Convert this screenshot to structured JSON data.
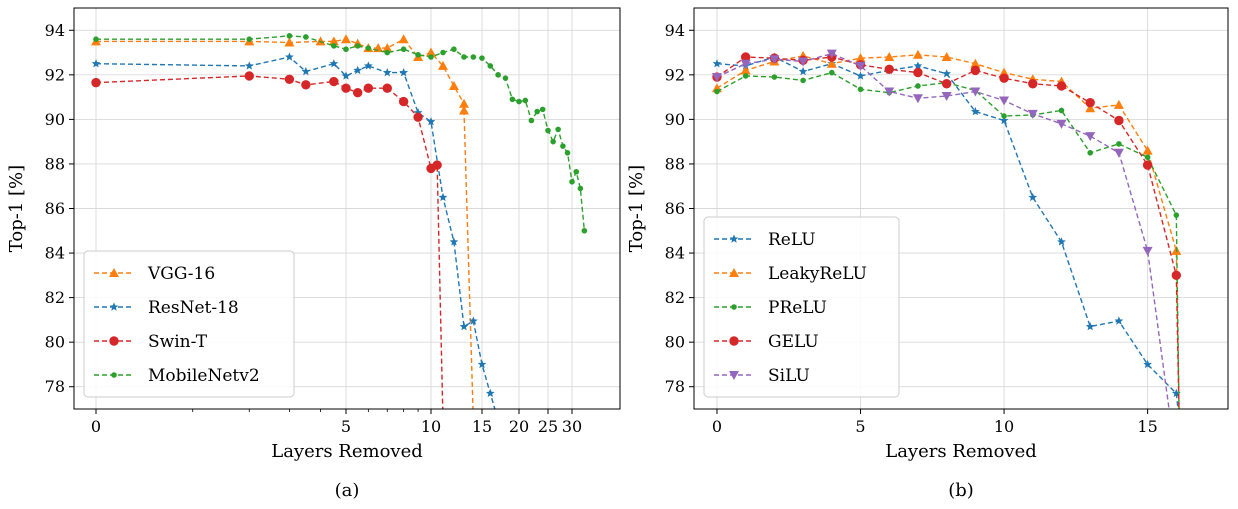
{
  "chart_data": [
    {
      "type": "line",
      "caption": "(a)",
      "xlabel": "Layers Removed",
      "ylabel": "Top-1 [%]",
      "ylim": [
        77,
        95
      ],
      "x_scale": "symlog",
      "xticks": [
        0,
        5,
        10,
        15,
        20,
        25,
        30
      ],
      "yticks": [
        78,
        80,
        82,
        84,
        86,
        88,
        90,
        92,
        94
      ],
      "grid": true,
      "legend_position": "lower-left",
      "series": [
        {
          "name": "VGG-16",
          "color": "#ff7f0e",
          "marker": "triangle",
          "x": [
            0,
            2,
            3,
            4,
            4.5,
            5,
            5.5,
            6,
            6.5,
            7,
            8,
            9,
            10,
            11,
            12,
            13,
            13,
            14
          ],
          "y": [
            93.5,
            93.5,
            93.45,
            93.5,
            93.5,
            93.6,
            93.4,
            93.2,
            93.2,
            93.2,
            93.6,
            92.8,
            93.0,
            92.4,
            91.5,
            90.7,
            90.4,
            76.5
          ]
        },
        {
          "name": "ResNet-18",
          "color": "#1f77b4",
          "marker": "star",
          "x": [
            0,
            2,
            3,
            3.5,
            4.5,
            5,
            5.5,
            6,
            7,
            8,
            9,
            10,
            11,
            12,
            13,
            14,
            15,
            16,
            17
          ],
          "y": [
            92.5,
            92.4,
            92.8,
            92.15,
            92.5,
            91.95,
            92.2,
            92.4,
            92.1,
            92.1,
            90.3,
            89.9,
            86.5,
            84.5,
            80.7,
            80.95,
            79.0,
            77.7,
            76.5
          ]
        },
        {
          "name": "Swin-T",
          "color": "#d62728",
          "marker": "circle",
          "x": [
            0,
            2,
            3,
            3.5,
            4.5,
            5,
            5.5,
            6,
            7,
            8,
            9,
            10,
            10.5,
            11,
            11.2
          ],
          "y": [
            91.65,
            91.95,
            91.8,
            91.55,
            91.7,
            91.4,
            91.2,
            91.4,
            91.4,
            90.8,
            90.1,
            87.8,
            87.95,
            76.5,
            76.5
          ]
        },
        {
          "name": "MobileNetv2",
          "color": "#2ca02c",
          "marker": "dot",
          "x": [
            0,
            2,
            3,
            3.5,
            4.5,
            5,
            5.5,
            6,
            7,
            8,
            9,
            10,
            11,
            12,
            13,
            14,
            15,
            16,
            17,
            18,
            19,
            20,
            21,
            22,
            23,
            24,
            25,
            26,
            27,
            28,
            29,
            30,
            31,
            32,
            33
          ],
          "y": [
            93.6,
            93.6,
            93.75,
            93.7,
            93.3,
            93.15,
            93.3,
            93.2,
            93.0,
            93.15,
            92.9,
            92.8,
            93.0,
            93.15,
            92.8,
            92.8,
            92.75,
            92.4,
            92.0,
            91.85,
            90.9,
            90.8,
            90.85,
            89.95,
            90.35,
            90.45,
            89.5,
            89.0,
            89.55,
            88.8,
            88.5,
            87.2,
            87.65,
            86.9,
            85.0
          ]
        }
      ]
    },
    {
      "type": "line",
      "caption": "(b)",
      "xlabel": "Layers Removed",
      "ylabel": "Top-1 [%]",
      "ylim": [
        77,
        95
      ],
      "xlim": [
        -0.8,
        17.8
      ],
      "x_scale": "linear",
      "xticks": [
        0,
        5,
        10,
        15
      ],
      "yticks": [
        78,
        80,
        82,
        84,
        86,
        88,
        90,
        92,
        94
      ],
      "grid": true,
      "legend_position": "lower-left",
      "series": [
        {
          "name": "ReLU",
          "color": "#1f77b4",
          "marker": "star",
          "x": [
            0,
            1,
            2,
            3,
            4,
            5,
            6,
            7,
            8,
            9,
            10,
            11,
            12,
            13,
            14,
            15,
            16,
            16.1
          ],
          "y": [
            92.5,
            92.4,
            92.8,
            92.15,
            92.5,
            91.95,
            92.2,
            92.4,
            92.05,
            90.35,
            89.95,
            86.5,
            84.5,
            80.7,
            80.95,
            79.0,
            77.7,
            76.5
          ]
        },
        {
          "name": "LeakyReLU",
          "color": "#ff7f0e",
          "marker": "triangle",
          "x": [
            0,
            1,
            2,
            3,
            4,
            5,
            6,
            7,
            8,
            9,
            10,
            11,
            12,
            13,
            14,
            15,
            16,
            16.1
          ],
          "y": [
            91.4,
            92.2,
            92.6,
            92.85,
            92.5,
            92.75,
            92.8,
            92.9,
            92.8,
            92.5,
            92.1,
            91.8,
            91.7,
            90.5,
            90.65,
            88.6,
            84.1,
            76.5
          ]
        },
        {
          "name": "PReLU",
          "color": "#2ca02c",
          "marker": "dot",
          "x": [
            0,
            1,
            2,
            3,
            4,
            5,
            6,
            7,
            8,
            9,
            10,
            11,
            12,
            13,
            14,
            15,
            16,
            16.1
          ],
          "y": [
            91.25,
            91.95,
            91.9,
            91.75,
            92.1,
            91.35,
            91.2,
            91.5,
            91.65,
            91.3,
            90.15,
            90.2,
            90.4,
            88.5,
            88.9,
            88.3,
            85.7,
            76.5
          ]
        },
        {
          "name": "GELU",
          "color": "#d62728",
          "marker": "circle",
          "x": [
            0,
            1,
            2,
            3,
            4,
            5,
            6,
            7,
            8,
            9,
            10,
            11,
            12,
            13,
            14,
            15,
            16,
            16.1
          ],
          "y": [
            91.9,
            92.8,
            92.75,
            92.65,
            92.8,
            92.45,
            92.25,
            92.1,
            91.6,
            92.2,
            91.85,
            91.6,
            91.5,
            90.75,
            89.95,
            87.95,
            83.0,
            76.5
          ]
        },
        {
          "name": "SiLU",
          "color": "#9467bd",
          "marker": "triangle-down",
          "x": [
            0,
            1,
            2,
            3,
            4,
            5,
            6,
            7,
            8,
            9,
            10,
            11,
            12,
            13,
            14,
            15,
            15.8
          ],
          "y": [
            91.9,
            92.5,
            92.7,
            92.6,
            92.95,
            92.4,
            91.25,
            90.95,
            91.05,
            91.25,
            90.85,
            90.25,
            89.8,
            89.25,
            88.5,
            84.1,
            76.5
          ]
        }
      ]
    }
  ]
}
